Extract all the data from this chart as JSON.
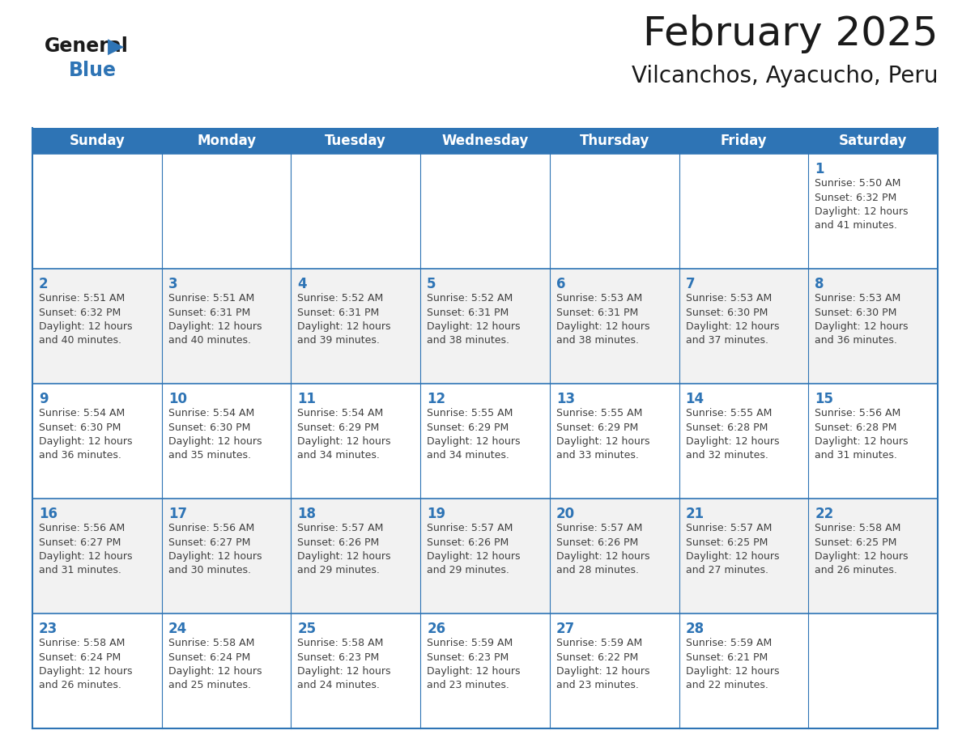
{
  "title": "February 2025",
  "subtitle": "Vilcanchos, Ayacucho, Peru",
  "header_bg": "#2E74B5",
  "header_text_color": "#FFFFFF",
  "cell_bg_white": "#FFFFFF",
  "cell_bg_gray": "#F2F2F2",
  "cell_border_color": "#2E74B5",
  "day_text_color": "#2E74B5",
  "info_text_color": "#404040",
  "days_of_week": [
    "Sunday",
    "Monday",
    "Tuesday",
    "Wednesday",
    "Thursday",
    "Friday",
    "Saturday"
  ],
  "weeks": [
    [
      {
        "day": null,
        "info": null
      },
      {
        "day": null,
        "info": null
      },
      {
        "day": null,
        "info": null
      },
      {
        "day": null,
        "info": null
      },
      {
        "day": null,
        "info": null
      },
      {
        "day": null,
        "info": null
      },
      {
        "day": 1,
        "info": "Sunrise: 5:50 AM\nSunset: 6:32 PM\nDaylight: 12 hours\nand 41 minutes."
      }
    ],
    [
      {
        "day": 2,
        "info": "Sunrise: 5:51 AM\nSunset: 6:32 PM\nDaylight: 12 hours\nand 40 minutes."
      },
      {
        "day": 3,
        "info": "Sunrise: 5:51 AM\nSunset: 6:31 PM\nDaylight: 12 hours\nand 40 minutes."
      },
      {
        "day": 4,
        "info": "Sunrise: 5:52 AM\nSunset: 6:31 PM\nDaylight: 12 hours\nand 39 minutes."
      },
      {
        "day": 5,
        "info": "Sunrise: 5:52 AM\nSunset: 6:31 PM\nDaylight: 12 hours\nand 38 minutes."
      },
      {
        "day": 6,
        "info": "Sunrise: 5:53 AM\nSunset: 6:31 PM\nDaylight: 12 hours\nand 38 minutes."
      },
      {
        "day": 7,
        "info": "Sunrise: 5:53 AM\nSunset: 6:30 PM\nDaylight: 12 hours\nand 37 minutes."
      },
      {
        "day": 8,
        "info": "Sunrise: 5:53 AM\nSunset: 6:30 PM\nDaylight: 12 hours\nand 36 minutes."
      }
    ],
    [
      {
        "day": 9,
        "info": "Sunrise: 5:54 AM\nSunset: 6:30 PM\nDaylight: 12 hours\nand 36 minutes."
      },
      {
        "day": 10,
        "info": "Sunrise: 5:54 AM\nSunset: 6:30 PM\nDaylight: 12 hours\nand 35 minutes."
      },
      {
        "day": 11,
        "info": "Sunrise: 5:54 AM\nSunset: 6:29 PM\nDaylight: 12 hours\nand 34 minutes."
      },
      {
        "day": 12,
        "info": "Sunrise: 5:55 AM\nSunset: 6:29 PM\nDaylight: 12 hours\nand 34 minutes."
      },
      {
        "day": 13,
        "info": "Sunrise: 5:55 AM\nSunset: 6:29 PM\nDaylight: 12 hours\nand 33 minutes."
      },
      {
        "day": 14,
        "info": "Sunrise: 5:55 AM\nSunset: 6:28 PM\nDaylight: 12 hours\nand 32 minutes."
      },
      {
        "day": 15,
        "info": "Sunrise: 5:56 AM\nSunset: 6:28 PM\nDaylight: 12 hours\nand 31 minutes."
      }
    ],
    [
      {
        "day": 16,
        "info": "Sunrise: 5:56 AM\nSunset: 6:27 PM\nDaylight: 12 hours\nand 31 minutes."
      },
      {
        "day": 17,
        "info": "Sunrise: 5:56 AM\nSunset: 6:27 PM\nDaylight: 12 hours\nand 30 minutes."
      },
      {
        "day": 18,
        "info": "Sunrise: 5:57 AM\nSunset: 6:26 PM\nDaylight: 12 hours\nand 29 minutes."
      },
      {
        "day": 19,
        "info": "Sunrise: 5:57 AM\nSunset: 6:26 PM\nDaylight: 12 hours\nand 29 minutes."
      },
      {
        "day": 20,
        "info": "Sunrise: 5:57 AM\nSunset: 6:26 PM\nDaylight: 12 hours\nand 28 minutes."
      },
      {
        "day": 21,
        "info": "Sunrise: 5:57 AM\nSunset: 6:25 PM\nDaylight: 12 hours\nand 27 minutes."
      },
      {
        "day": 22,
        "info": "Sunrise: 5:58 AM\nSunset: 6:25 PM\nDaylight: 12 hours\nand 26 minutes."
      }
    ],
    [
      {
        "day": 23,
        "info": "Sunrise: 5:58 AM\nSunset: 6:24 PM\nDaylight: 12 hours\nand 26 minutes."
      },
      {
        "day": 24,
        "info": "Sunrise: 5:58 AM\nSunset: 6:24 PM\nDaylight: 12 hours\nand 25 minutes."
      },
      {
        "day": 25,
        "info": "Sunrise: 5:58 AM\nSunset: 6:23 PM\nDaylight: 12 hours\nand 24 minutes."
      },
      {
        "day": 26,
        "info": "Sunrise: 5:59 AM\nSunset: 6:23 PM\nDaylight: 12 hours\nand 23 minutes."
      },
      {
        "day": 27,
        "info": "Sunrise: 5:59 AM\nSunset: 6:22 PM\nDaylight: 12 hours\nand 23 minutes."
      },
      {
        "day": 28,
        "info": "Sunrise: 5:59 AM\nSunset: 6:21 PM\nDaylight: 12 hours\nand 22 minutes."
      },
      {
        "day": null,
        "info": null
      }
    ]
  ],
  "logo_general_color": "#1a1a1a",
  "logo_blue_color": "#2E74B5",
  "title_fontsize": 36,
  "subtitle_fontsize": 20,
  "header_fontsize": 12,
  "day_num_fontsize": 12,
  "info_fontsize": 9
}
